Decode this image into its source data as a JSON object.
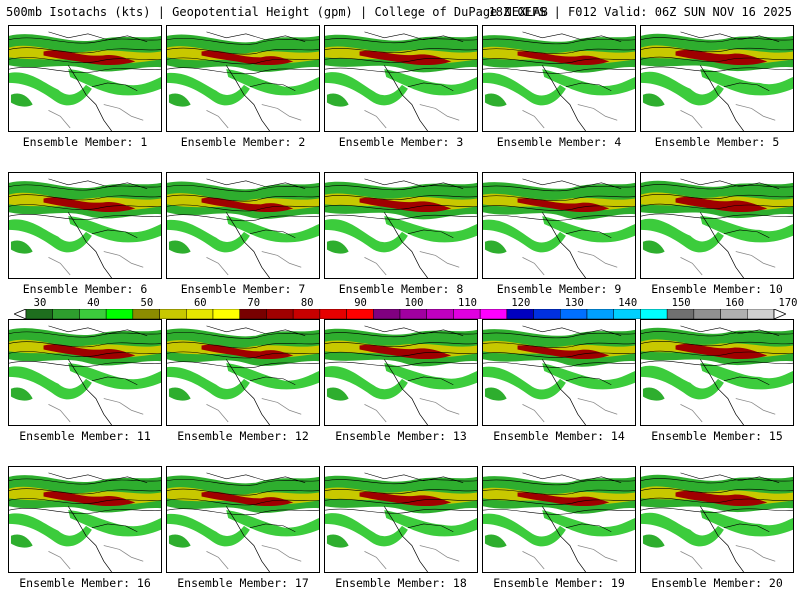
{
  "header": {
    "title_left": "500mb Isotachs (kts) | Geopotential Height (gpm) | College of DuPage NEXLAB",
    "title_right": "18Z GEFS | F012 Valid: 06Z SUN NOV 16 2025"
  },
  "panels": [
    {
      "label": "Ensemble Member: 1"
    },
    {
      "label": "Ensemble Member: 2"
    },
    {
      "label": "Ensemble Member: 3"
    },
    {
      "label": "Ensemble Member: 4"
    },
    {
      "label": "Ensemble Member: 5"
    },
    {
      "label": "Ensemble Member: 6"
    },
    {
      "label": "Ensemble Member: 7"
    },
    {
      "label": "Ensemble Member: 8"
    },
    {
      "label": "Ensemble Member: 9"
    },
    {
      "label": "Ensemble Member: 10"
    },
    {
      "label": "Ensemble Member: 11"
    },
    {
      "label": "Ensemble Member: 12"
    },
    {
      "label": "Ensemble Member: 13"
    },
    {
      "label": "Ensemble Member: 14"
    },
    {
      "label": "Ensemble Member: 15"
    },
    {
      "label": "Ensemble Member: 16"
    },
    {
      "label": "Ensemble Member: 17"
    },
    {
      "label": "Ensemble Member: 18"
    },
    {
      "label": "Ensemble Member: 19"
    },
    {
      "label": "Ensemble Member: 20"
    }
  ],
  "colorbar": {
    "ticks": [
      "30",
      "40",
      "50",
      "60",
      "70",
      "80",
      "90",
      "100",
      "110",
      "120",
      "130",
      "140",
      "150",
      "160",
      "170"
    ],
    "colors": [
      "#1e6e1e",
      "#2e9e2e",
      "#3ccc3c",
      "#00ff00",
      "#8c8c00",
      "#c8c800",
      "#e6e600",
      "#ffff00",
      "#780000",
      "#a00000",
      "#c80000",
      "#e60000",
      "#ff0000",
      "#800080",
      "#a000a0",
      "#c000c0",
      "#e000e0",
      "#ff00ff",
      "#0000c0",
      "#0030e0",
      "#0070ff",
      "#00a0ff",
      "#00d0ff",
      "#00ffff",
      "#707070",
      "#909090",
      "#b0b0b0",
      "#d0d0d0"
    ]
  }
}
